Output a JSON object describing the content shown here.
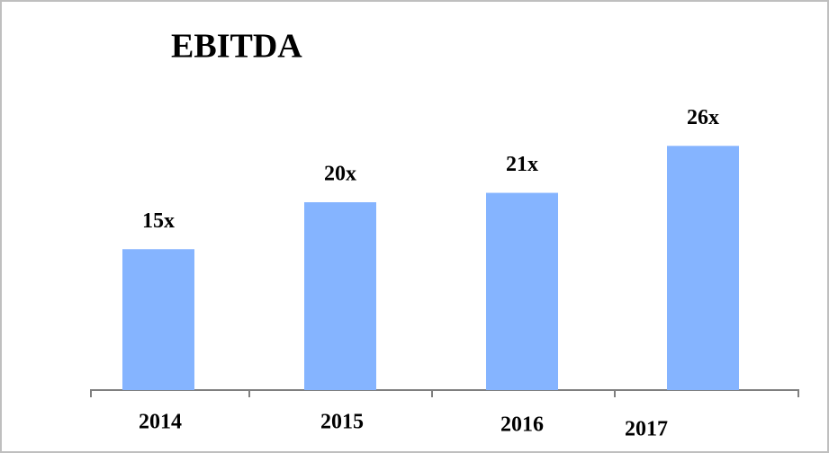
{
  "chart_data": {
    "type": "bar",
    "title": "EBITDA",
    "categories": [
      "2014",
      "2015",
      "2016",
      "2017"
    ],
    "values": [
      15,
      20,
      21,
      26
    ],
    "value_labels": [
      "15x",
      "20x",
      "21x",
      "26x"
    ],
    "color": "#85b4ff"
  }
}
